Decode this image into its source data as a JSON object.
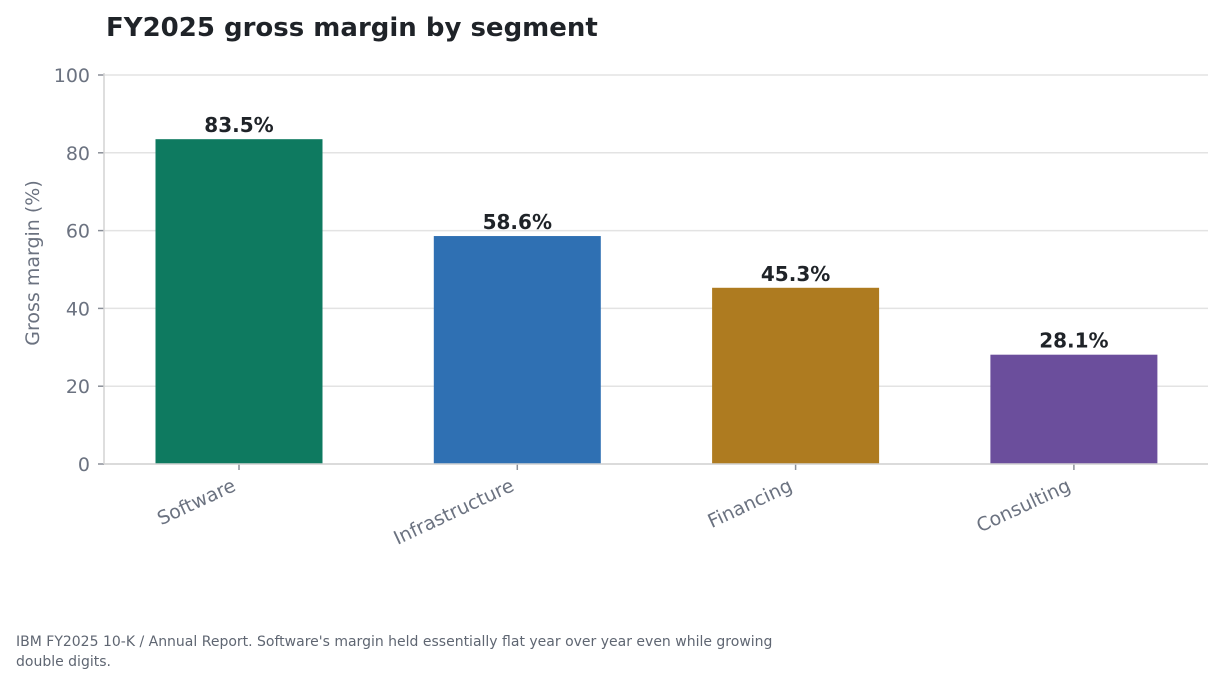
{
  "chart_data": {
    "type": "bar",
    "title": "FY2025 gross margin by segment",
    "ylabel": "Gross margin (%)",
    "xlabel": "",
    "categories": [
      "Software",
      "Infrastructure",
      "Financing",
      "Consulting"
    ],
    "values": [
      83.5,
      58.6,
      45.3,
      28.1
    ],
    "value_labels": [
      "83.5%",
      "58.6%",
      "45.3%",
      "28.1%"
    ],
    "ylim": [
      0,
      100
    ],
    "yticks": [
      0,
      20,
      40,
      60,
      80,
      100
    ],
    "grid": true,
    "colors": [
      "#0e7a60",
      "#2f70b3",
      "#ae7b20",
      "#6b4e9c"
    ]
  },
  "caption": "IBM FY2025 10-K / Annual Report. Software's margin held essentially flat year over year even while growing double digits."
}
